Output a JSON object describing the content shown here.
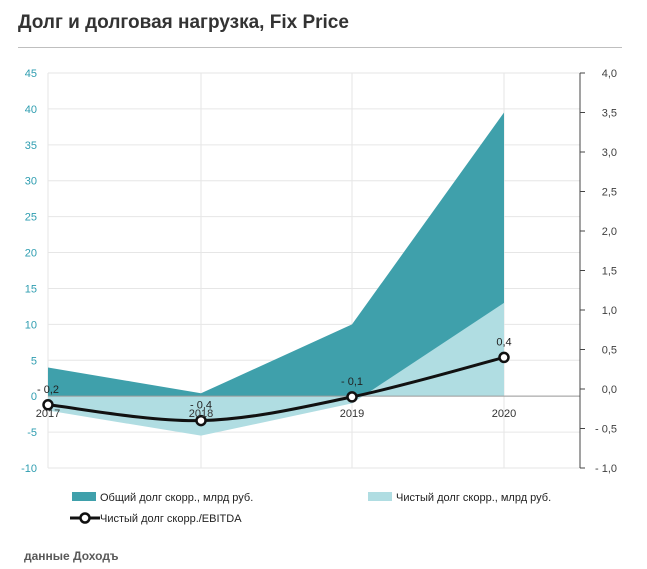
{
  "title": "Долг и долговая нагрузка, Fix Price",
  "source": "данные Доходъ",
  "colors": {
    "total_debt": "#3fa0ab",
    "net_debt": "#b0dde2",
    "ratio_line": "#111111",
    "left_axis_text": "#2e9db0",
    "right_axis_text": "#404040",
    "grid": "#e6e6e6"
  },
  "chart_data": {
    "type": "area",
    "categories": [
      "2017",
      "2018",
      "2019",
      "2020"
    ],
    "series": [
      {
        "name": "Общий долг скорр., млрд руб.",
        "type": "area",
        "axis": "left",
        "values": [
          4.0,
          0.4,
          10.0,
          39.5
        ]
      },
      {
        "name": "Чистый долг скорр., млрд руб.",
        "type": "area",
        "axis": "left",
        "values": [
          -2.0,
          -5.5,
          -1.0,
          13.0
        ]
      },
      {
        "name": "Чистый долг скорр./EBITDA",
        "type": "line",
        "axis": "right",
        "values": [
          -0.2,
          -0.4,
          -0.1,
          0.4
        ]
      }
    ],
    "data_labels": [
      "- 0,2",
      "- 0,4",
      "- 0,1",
      "0,4"
    ],
    "y_left": {
      "min": -10,
      "max": 45,
      "ticks": [
        "-10",
        "-5",
        "0",
        "5",
        "10",
        "15",
        "20",
        "25",
        "30",
        "35",
        "40",
        "45"
      ]
    },
    "y_right": {
      "min": -1.0,
      "max": 4.0,
      "ticks": [
        "- 1,0",
        "- 0,5",
        "0,0",
        "0,5",
        "1,0",
        "1,5",
        "2,0",
        "2,5",
        "3,0",
        "3,5",
        "4,0"
      ]
    },
    "grid": true,
    "legend_position": "bottom"
  }
}
